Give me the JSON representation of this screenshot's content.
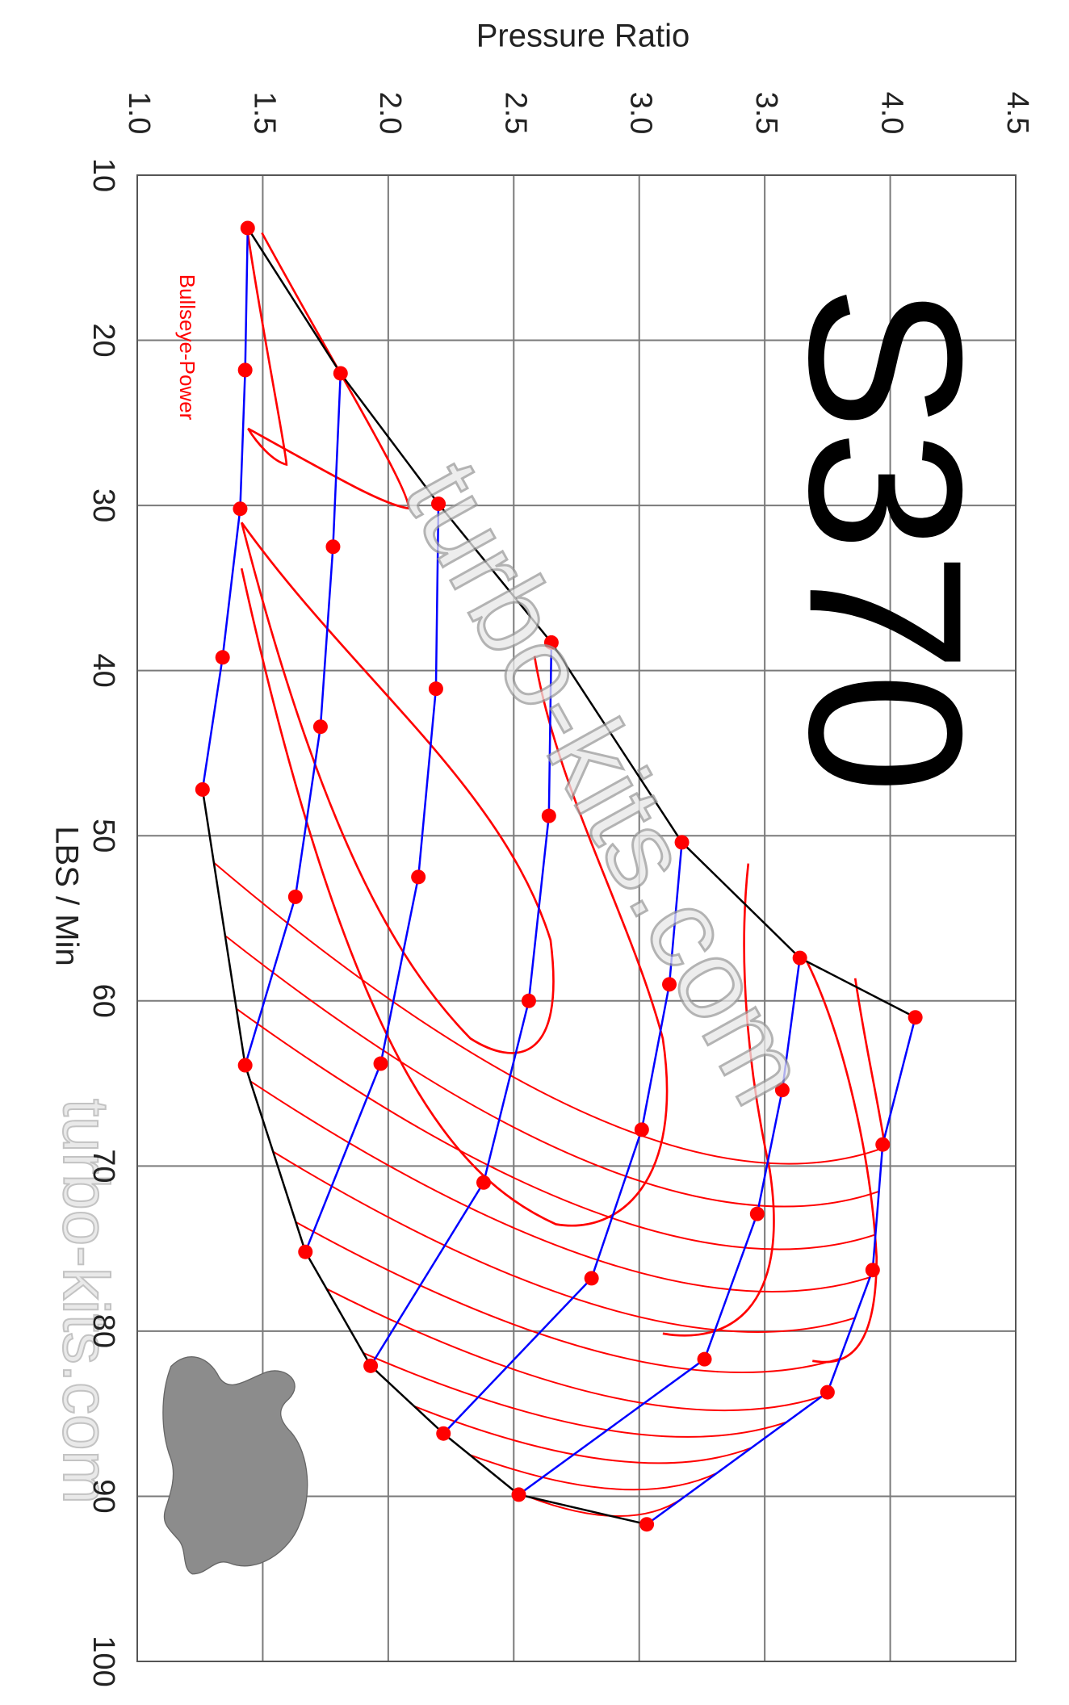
{
  "chart_data": {
    "type": "line",
    "title": "S370",
    "subtitle": "Bullseye-Power",
    "watermarks": [
      "turbo-kits.com",
      "turbo-kits.com"
    ],
    "x_label": "LBS / Min",
    "y_label": "Pressure Ratio",
    "xlim": [
      10,
      100
    ],
    "ylim": [
      1,
      4.5
    ],
    "xticks": [
      10,
      20,
      30,
      40,
      50,
      60,
      70,
      80,
      90,
      100
    ],
    "yticks": [
      {
        "value": 1,
        "label": "1.0"
      },
      1.5,
      {
        "value": 2,
        "label": "2.0"
      },
      2.5,
      {
        "value": 3,
        "label": "3.0"
      },
      3.5,
      {
        "value": 4,
        "label": "4.0"
      },
      4.5
    ],
    "grid": true,
    "line_color": "#0000ff",
    "marker_color": "#ff0000",
    "boundary_color": "#000000",
    "contour_color": "#ff0000",
    "series": [
      {
        "x": [
          13.2,
          21.8,
          30.2,
          39.2,
          47.2
        ],
        "values": [
          1.44,
          1.43,
          1.41,
          1.34,
          1.26
        ]
      },
      {
        "x": [
          22.0,
          32.5,
          43.4,
          53.7,
          63.9
        ],
        "values": [
          1.81,
          1.78,
          1.73,
          1.63,
          1.43
        ]
      },
      {
        "x": [
          29.9,
          41.1,
          52.5,
          63.8,
          75.2
        ],
        "values": [
          2.2,
          2.19,
          2.12,
          1.97,
          1.67
        ]
      },
      {
        "x": [
          38.3,
          48.8,
          60.0,
          71.0,
          82.1
        ],
        "values": [
          2.65,
          2.64,
          2.56,
          2.38,
          1.93
        ]
      },
      {
        "x": [
          50.4,
          59.0,
          67.8,
          76.8,
          86.2
        ],
        "values": [
          3.17,
          3.12,
          3.01,
          2.81,
          2.22
        ]
      },
      {
        "x": [
          57.4,
          65.4,
          72.9,
          81.7,
          89.9
        ],
        "values": [
          3.64,
          3.57,
          3.47,
          3.26,
          2.52
        ]
      },
      {
        "x": [
          61.0,
          68.7,
          76.3,
          83.7,
          91.7
        ],
        "values": [
          4.1,
          3.97,
          3.93,
          3.75,
          3.03
        ]
      }
    ]
  }
}
